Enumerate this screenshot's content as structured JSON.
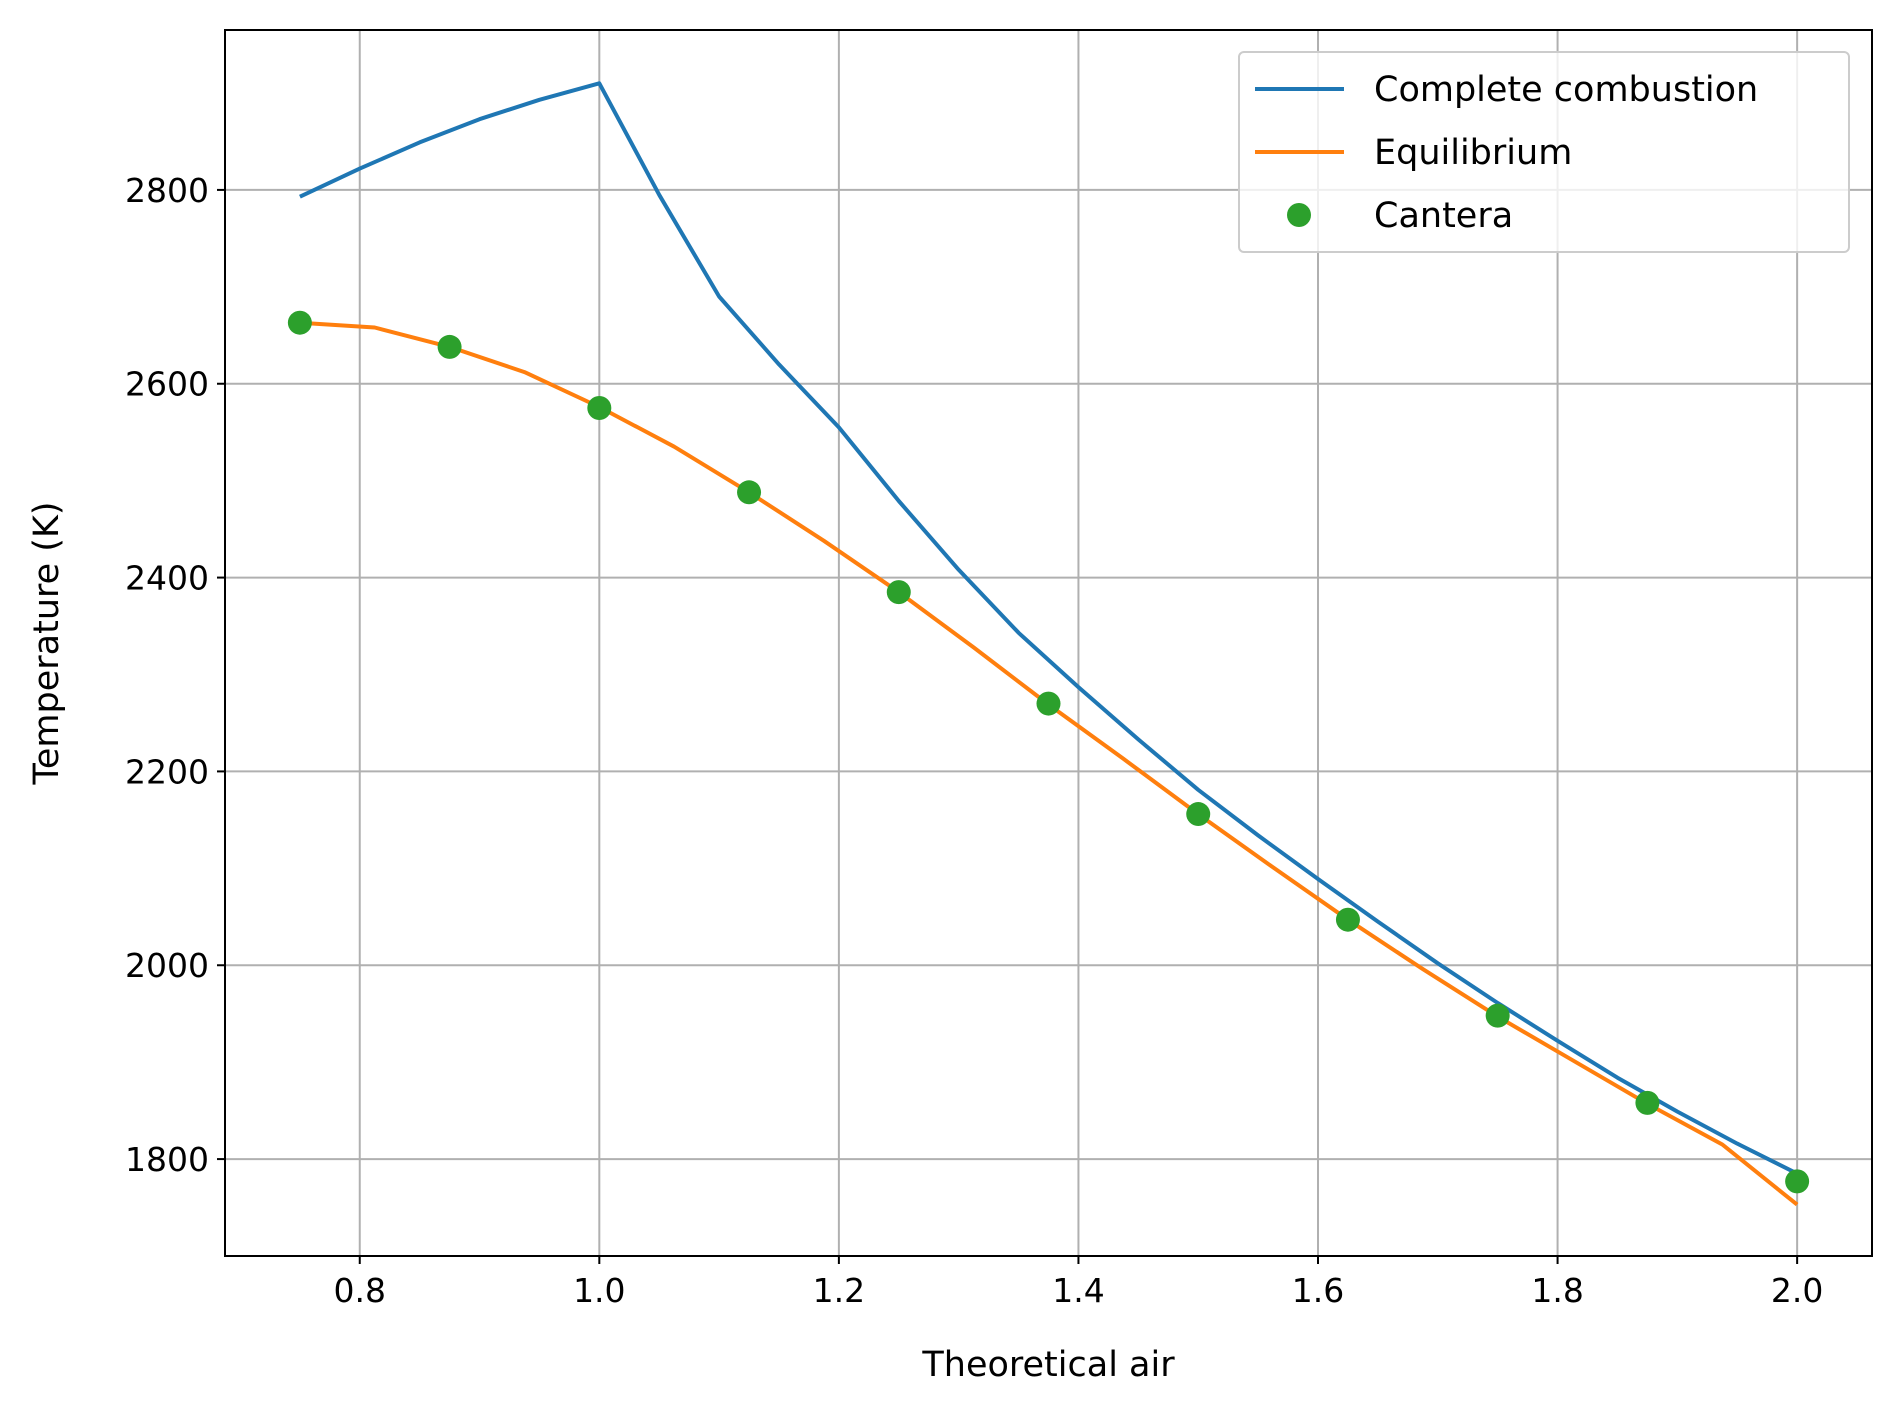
{
  "chart_data": {
    "type": "line",
    "title": "",
    "xlabel": "Theoretical air",
    "ylabel": "Temperature (K)",
    "xlim": [
      0.6875,
      2.0625
    ],
    "ylim": [
      1700,
      2965
    ],
    "xticks": [
      0.8,
      1.0,
      1.2,
      1.4,
      1.6,
      1.8,
      2.0
    ],
    "xtick_labels": [
      "0.8",
      "1.0",
      "1.2",
      "1.4",
      "1.6",
      "1.8",
      "2.0"
    ],
    "yticks": [
      1800,
      2000,
      2200,
      2400,
      2600,
      2800
    ],
    "ytick_labels": [
      "1800",
      "2000",
      "2200",
      "2400",
      "2600",
      "2800"
    ],
    "grid": true,
    "legend_position": "top-right",
    "series": [
      {
        "name": "Complete combustion",
        "style": "line",
        "color": "#1f77b4",
        "x": [
          0.75,
          0.8,
          0.85,
          0.9,
          0.95,
          1.0,
          1.05,
          1.1,
          1.15,
          1.2,
          1.25,
          1.3,
          1.35,
          1.4,
          1.45,
          1.5,
          1.55,
          1.6,
          1.65,
          1.7,
          1.75,
          1.8,
          1.85,
          1.9,
          1.95,
          2.0
        ],
        "y": [
          2793,
          2822,
          2849,
          2873,
          2893,
          2910,
          2795,
          2690,
          2620,
          2555,
          2479,
          2408,
          2343,
          2287,
          2233,
          2181,
          2134,
          2089,
          2045,
          2002,
          1961,
          1922,
          1884,
          1849,
          1816,
          1785
        ]
      },
      {
        "name": "Equilibrium",
        "style": "line",
        "color": "#ff7f0e",
        "x": [
          0.75,
          0.8125,
          0.875,
          0.9375,
          1.0,
          1.0625,
          1.125,
          1.1875,
          1.25,
          1.3125,
          1.375,
          1.4375,
          1.5,
          1.5625,
          1.625,
          1.6875,
          1.75,
          1.8125,
          1.875,
          1.9375,
          2.0
        ],
        "y": [
          2663,
          2658,
          2638,
          2612,
          2576,
          2535,
          2488,
          2438,
          2385,
          2328,
          2269,
          2213,
          2156,
          2101,
          2047,
          1996,
          1947,
          1902,
          1857,
          1815,
          1753
        ]
      },
      {
        "name": "Cantera",
        "style": "markers",
        "color": "#2ca02c",
        "x": [
          0.75,
          0.875,
          1.0,
          1.125,
          1.25,
          1.375,
          1.5,
          1.625,
          1.75,
          1.875,
          2.0
        ],
        "y": [
          2663,
          2638,
          2575,
          2488,
          2385,
          2270,
          2156,
          2047,
          1948,
          1858,
          1777
        ]
      }
    ]
  }
}
